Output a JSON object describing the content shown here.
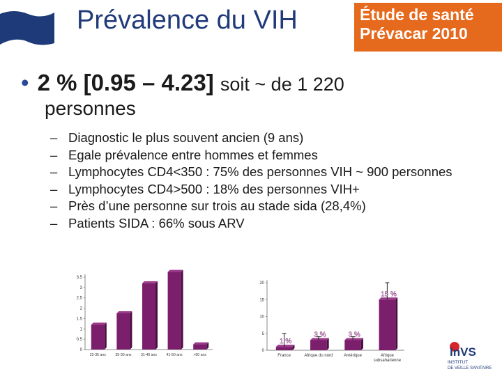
{
  "header": {
    "title": "Prévalence du VIH",
    "logo_line1": "Étude de santé",
    "logo_line2": "Prévacar 2010"
  },
  "main": {
    "bullet_symbol": "•",
    "bullet_bold": "2 % [0.95 – 4.23]",
    "bullet_rest": "soit ~ de 1 220",
    "bullet_cont": "personnes",
    "dash": "–",
    "subs": [
      "Diagnostic le plus souvent ancien (9 ans)",
      "Egale prévalence entre hommes et femmes",
      "Lymphocytes CD4<350 : 75% des personnes VIH ~  900 personnes",
      "Lymphocytes CD4>500 : 18% des personnes VIH+",
      "Près d’une personne sur trois au stade sida (28,4%)",
      "Patients SIDA : 66% sous ARV"
    ]
  },
  "footer_logo": {
    "line1": "InVS",
    "line2": "INSTITUT",
    "line3": "DE VEILLE SANITAIRE"
  },
  "colors": {
    "bar": "#7b1f6d",
    "logo_bg": "#e66a1e",
    "title": "#203a7a"
  },
  "chart_data": [
    {
      "type": "bar",
      "categories": [
        "22-35 ans",
        "35-30 ans",
        "31-40 ans",
        "41-50 ans",
        ">50 ans"
      ],
      "values": [
        1.2,
        1.75,
        3.2,
        3.75,
        0.25
      ],
      "ylim": [
        0,
        3.5
      ],
      "yticks": [
        "0",
        "0.5",
        "1",
        "1.5",
        "2",
        "2.5",
        "3",
        "3.5"
      ]
    },
    {
      "type": "bar",
      "categories": [
        "France",
        "Afrique du nord",
        "Amérique",
        "Afrique subsaharienne"
      ],
      "values": [
        1,
        3,
        3,
        15
      ],
      "error_high": [
        5,
        4,
        4,
        20
      ],
      "data_labels": [
        "1 %",
        "3 %",
        "3 %",
        "15 %"
      ],
      "ylim": [
        0,
        20
      ],
      "yticks": [
        "0",
        "5",
        "10",
        "15",
        "20"
      ]
    }
  ]
}
